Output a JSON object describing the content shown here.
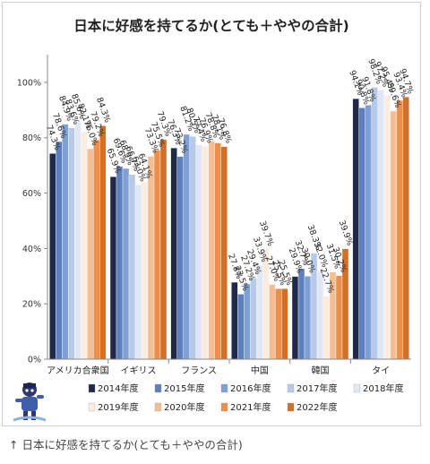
{
  "caption": "↑ 日本に好感を持てるか(とても＋ややの合計)",
  "chart_data": {
    "type": "bar",
    "title": "日本に好感を持てるか(とても＋ややの合計)",
    "xlabel": "",
    "ylabel": "",
    "ylim": [
      0,
      110
    ],
    "yticks": [
      0,
      20,
      40,
      60,
      80,
      100
    ],
    "ytick_labels": [
      "0%",
      "20%",
      "40%",
      "60%",
      "80%",
      "100%"
    ],
    "categories": [
      "アメリカ合衆国",
      "イギリス",
      "フランス",
      "中国",
      "韓国",
      "タイ"
    ],
    "legend_position": "bottom",
    "series": [
      {
        "name": "2014年度",
        "color": "#1f2a4a",
        "values": [
          74.3,
          65.9,
          76.3,
          27.8,
          29.9,
          94.1
        ]
      },
      {
        "name": "2015年度",
        "color": "#5b7fbf",
        "values": [
          78.6,
          69.6,
          73.2,
          23.5,
          32.7,
          90.8
        ]
      },
      {
        "name": "2016年度",
        "color": "#7fa0d6",
        "values": [
          84.9,
          68.9,
          81.2,
          27.2,
          30.0,
          91.8
        ]
      },
      {
        "name": "2017年度",
        "color": "#b6c9e8",
        "values": [
          83.6,
          66.7,
          80.5,
          29.4,
          38.3,
          98.2
        ]
      },
      {
        "name": "2018年度",
        "color": "#dfe7f4",
        "values": [
          85.6,
          63.0,
          77.4,
          33.9,
          32.0,
          97.2
        ]
      },
      {
        "name": "2019年度",
        "color": "#fbece0",
        "values": [
          82.1,
          64.1,
          76.9,
          39.7,
          22.7,
          95.4
        ]
      },
      {
        "name": "2020年度",
        "color": "#f4be94",
        "values": [
          76.0,
          73.3,
          78.8,
          27.0,
          31.5,
          89.6
        ]
      },
      {
        "name": "2021年度",
        "color": "#ec8e4c",
        "values": [
          79.2,
          75.5,
          78.1,
          25.5,
          30.2,
          93.4
        ]
      },
      {
        "name": "2022年度",
        "color": "#d46f28",
        "values": [
          84.3,
          79.3,
          76.8,
          25.5,
          39.9,
          94.7
        ]
      }
    ],
    "data_labels": [
      [
        "74.3%",
        "78.6%",
        "84.9%",
        "83.6%",
        "85.6%",
        "82.1%",
        "76.0%",
        "79.2%",
        "84.3%"
      ],
      [
        "65.9%",
        "69.6%",
        "68.9%",
        "66.7%",
        "63.0%",
        "64.1%",
        "73.3%",
        "75.5%",
        "79.3%"
      ],
      [
        "76.3%",
        "73.2%",
        "81.2%",
        "80.5%",
        "77.4%",
        "76.9%",
        "78.8%",
        "78.1%",
        "76.8%"
      ],
      [
        "27.8%",
        "23.5%",
        "27.2%",
        "29.4%",
        "33.9%",
        "39.7%",
        "27.0%",
        "25.5%",
        "25.5%"
      ],
      [
        "29.9%",
        "32.7%",
        "30.0%",
        "38.3%",
        "32.0%",
        "22.7%",
        "31.5%",
        "30.2%",
        "39.9%"
      ],
      [
        "94.1%",
        "90.8%",
        "91.8%",
        "98.2%",
        "97.2%",
        "95.4%",
        "89.6%",
        "93.4%",
        "94.7%"
      ]
    ],
    "grid": false
  }
}
